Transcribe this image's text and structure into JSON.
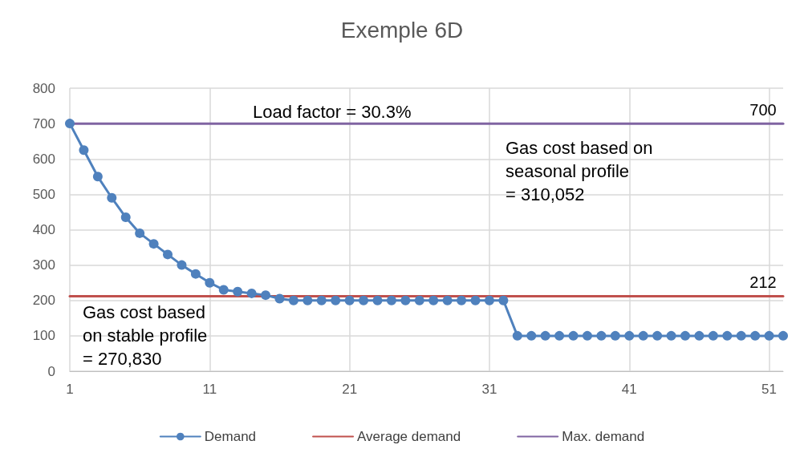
{
  "chart_data": {
    "type": "line",
    "title": "Exemple 6D",
    "x": [
      1,
      2,
      3,
      4,
      5,
      6,
      7,
      8,
      9,
      10,
      11,
      12,
      13,
      14,
      15,
      16,
      17,
      18,
      19,
      20,
      21,
      22,
      23,
      24,
      25,
      26,
      27,
      28,
      29,
      30,
      31,
      32,
      33,
      34,
      35,
      36,
      37,
      38,
      39,
      40,
      41,
      42,
      43,
      44,
      45,
      46,
      47,
      48,
      49,
      50,
      51,
      52
    ],
    "series": [
      {
        "name": "Demand",
        "color": "#4f81bd",
        "marker": "circle",
        "values": [
          700,
          625,
          550,
          490,
          435,
          390,
          360,
          330,
          300,
          275,
          250,
          230,
          225,
          220,
          215,
          205,
          200,
          200,
          200,
          200,
          200,
          200,
          200,
          200,
          200,
          200,
          200,
          200,
          200,
          200,
          200,
          200,
          100,
          100,
          100,
          100,
          100,
          100,
          100,
          100,
          100,
          100,
          100,
          100,
          100,
          100,
          100,
          100,
          100,
          100,
          100,
          100
        ]
      },
      {
        "name": "Average demand",
        "color": "#c0504d",
        "marker": "none",
        "values": [
          212,
          212,
          212,
          212,
          212,
          212,
          212,
          212,
          212,
          212,
          212,
          212,
          212,
          212,
          212,
          212,
          212,
          212,
          212,
          212,
          212,
          212,
          212,
          212,
          212,
          212,
          212,
          212,
          212,
          212,
          212,
          212,
          212,
          212,
          212,
          212,
          212,
          212,
          212,
          212,
          212,
          212,
          212,
          212,
          212,
          212,
          212,
          212,
          212,
          212,
          212,
          212
        ],
        "value_labels": [
          null,
          null,
          null,
          null,
          null,
          null,
          null,
          null,
          null,
          null,
          null,
          null,
          null,
          null,
          null,
          null,
          null,
          null,
          null,
          null,
          null,
          null,
          null,
          null,
          null,
          null,
          null,
          null,
          null,
          null,
          null,
          null,
          null,
          null,
          null,
          null,
          null,
          null,
          null,
          null,
          null,
          null,
          null,
          null,
          null,
          null,
          null,
          null,
          null,
          null,
          null,
          "212"
        ]
      },
      {
        "name": "Max. demand",
        "color": "#8064a2",
        "marker": "none",
        "values": [
          700,
          700,
          700,
          700,
          700,
          700,
          700,
          700,
          700,
          700,
          700,
          700,
          700,
          700,
          700,
          700,
          700,
          700,
          700,
          700,
          700,
          700,
          700,
          700,
          700,
          700,
          700,
          700,
          700,
          700,
          700,
          700,
          700,
          700,
          700,
          700,
          700,
          700,
          700,
          700,
          700,
          700,
          700,
          700,
          700,
          700,
          700,
          700,
          700,
          700,
          700,
          700
        ],
        "value_labels": [
          null,
          null,
          null,
          null,
          null,
          null,
          null,
          null,
          null,
          null,
          null,
          null,
          null,
          null,
          null,
          null,
          null,
          null,
          null,
          null,
          null,
          null,
          null,
          null,
          null,
          null,
          null,
          null,
          null,
          null,
          null,
          null,
          null,
          null,
          null,
          null,
          null,
          null,
          null,
          null,
          null,
          null,
          null,
          null,
          null,
          null,
          null,
          null,
          null,
          null,
          null,
          "700"
        ]
      }
    ],
    "xlim": [
      1,
      52
    ],
    "xticks": [
      1,
      11,
      21,
      31,
      41,
      51
    ],
    "ylim": [
      0,
      800
    ],
    "yticks": [
      0,
      100,
      200,
      300,
      400,
      500,
      600,
      700,
      800
    ],
    "grid": true,
    "legend": "bottom",
    "annotations": [
      "Load factor = 30.3%",
      "Gas cost based on\nseasonal profile\n= 310,052",
      "Gas cost based\non stable profile\n= 270,830"
    ]
  }
}
